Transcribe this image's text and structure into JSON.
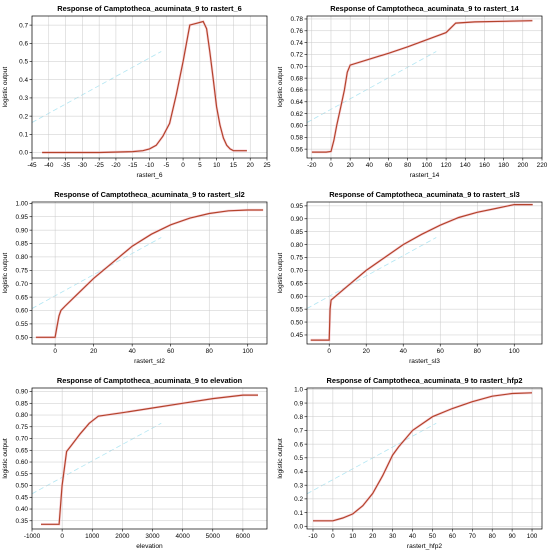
{
  "chart_data": [
    {
      "type": "line",
      "title": "Response of Camptotheca_acuminata_9 to rastert_6",
      "xlabel": "rastert_6",
      "ylabel": "logistic output",
      "xlim": [
        -45,
        25
      ],
      "ylim": [
        -0.03,
        0.75
      ],
      "xticks": [
        -45,
        -40,
        -35,
        -30,
        -25,
        -20,
        -15,
        -10,
        -5,
        0,
        5,
        10,
        15,
        20,
        25
      ],
      "yticks": [
        0.0,
        0.1,
        0.2,
        0.3,
        0.4,
        0.5,
        0.6,
        0.7
      ],
      "xtick_labels": [
        "-45",
        "-40",
        "-35",
        "-30",
        "-25",
        "-20",
        "-15",
        "-10",
        "-5",
        "0",
        "5",
        "10",
        "15",
        "20",
        "25"
      ],
      "ytick_labels": [
        "0.0",
        "0.1",
        "0.2",
        "0.3",
        "0.4",
        "0.5",
        "0.6",
        "0.7"
      ],
      "grid": true,
      "series": [
        {
          "x": [
            -42,
            -25,
            -15,
            -12,
            -10,
            -8,
            -6,
            -4,
            -2,
            0,
            2,
            4,
            6,
            7,
            8,
            9,
            10,
            11,
            12,
            13,
            14,
            15,
            17,
            19
          ],
          "y": [
            0.0,
            0.0,
            0.005,
            0.01,
            0.02,
            0.04,
            0.09,
            0.16,
            0.32,
            0.5,
            0.7,
            0.71,
            0.72,
            0.68,
            0.55,
            0.4,
            0.25,
            0.15,
            0.08,
            0.04,
            0.02,
            0.01,
            0.01,
            0.01
          ]
        }
      ]
    },
    {
      "type": "line",
      "title": "Response of Camptotheca_acuminata_9 to rastert_14",
      "xlabel": "rastert_14",
      "ylabel": "logistic output",
      "xlim": [
        -25,
        220
      ],
      "ylim": [
        0.545,
        0.785
      ],
      "xticks": [
        -20,
        0,
        20,
        40,
        60,
        80,
        100,
        120,
        140,
        160,
        180,
        200,
        220
      ],
      "yticks": [
        0.56,
        0.58,
        0.6,
        0.62,
        0.64,
        0.66,
        0.68,
        0.7,
        0.72,
        0.74,
        0.76,
        0.78
      ],
      "xtick_labels": [
        "-20",
        "0",
        "20",
        "40",
        "60",
        "80",
        "100",
        "120",
        "140",
        "160",
        "180",
        "200",
        "220"
      ],
      "ytick_labels": [
        "0.56",
        "0.58",
        "0.60",
        "0.62",
        "0.64",
        "0.66",
        "0.68",
        "0.70",
        "0.72",
        "0.74",
        "0.76",
        "0.78"
      ],
      "grid": true,
      "series": [
        {
          "x": [
            -20,
            -5,
            0,
            3,
            6,
            10,
            14,
            17,
            20,
            40,
            60,
            80,
            100,
            120,
            130,
            150,
            180,
            210
          ],
          "y": [
            0.555,
            0.555,
            0.556,
            0.575,
            0.6,
            0.63,
            0.66,
            0.69,
            0.702,
            0.712,
            0.722,
            0.733,
            0.745,
            0.757,
            0.773,
            0.775,
            0.776,
            0.777
          ]
        }
      ]
    },
    {
      "type": "line",
      "title": "Response of Camptotheca_acuminata_9 to rastert_sl2",
      "xlabel": "rastert_sl2",
      "ylabel": "logistic output",
      "xlim": [
        -12,
        110
      ],
      "ylim": [
        0.475,
        1.005
      ],
      "xticks": [
        0,
        20,
        40,
        60,
        80,
        100
      ],
      "yticks": [
        0.5,
        0.55,
        0.6,
        0.65,
        0.7,
        0.75,
        0.8,
        0.85,
        0.9,
        0.95,
        1.0
      ],
      "xtick_labels": [
        "0",
        "20",
        "40",
        "60",
        "80",
        "100"
      ],
      "ytick_labels": [
        "0.50",
        "0.55",
        "0.60",
        "0.65",
        "0.70",
        "0.75",
        "0.80",
        "0.85",
        "0.90",
        "0.95",
        "1.00"
      ],
      "grid": true,
      "series": [
        {
          "x": [
            -10,
            0,
            1,
            2,
            3,
            5,
            10,
            20,
            30,
            40,
            50,
            60,
            70,
            80,
            90,
            100,
            108
          ],
          "y": [
            0.5,
            0.5,
            0.54,
            0.58,
            0.6,
            0.615,
            0.65,
            0.72,
            0.78,
            0.84,
            0.885,
            0.92,
            0.945,
            0.962,
            0.972,
            0.975,
            0.975
          ]
        }
      ]
    },
    {
      "type": "line",
      "title": "Response of Camptotheca_acuminata_9 to rastert_sl3",
      "xlabel": "rastert_sl3",
      "ylabel": "logistic output",
      "xlim": [
        -12,
        115
      ],
      "ylim": [
        0.415,
        0.965
      ],
      "xticks": [
        0,
        20,
        40,
        60,
        80,
        100
      ],
      "yticks": [
        0.45,
        0.5,
        0.55,
        0.6,
        0.65,
        0.7,
        0.75,
        0.8,
        0.85,
        0.9,
        0.95
      ],
      "xtick_labels": [
        "0",
        "20",
        "40",
        "60",
        "80",
        "100"
      ],
      "ytick_labels": [
        "0.45",
        "0.50",
        "0.55",
        "0.60",
        "0.65",
        "0.70",
        "0.75",
        "0.80",
        "0.85",
        "0.90",
        "0.95"
      ],
      "grid": true,
      "series": [
        {
          "x": [
            -10,
            0,
            0.5,
            1,
            10,
            20,
            30,
            40,
            50,
            60,
            70,
            80,
            90,
            100,
            110
          ],
          "y": [
            0.43,
            0.43,
            0.55,
            0.585,
            0.64,
            0.7,
            0.75,
            0.8,
            0.84,
            0.875,
            0.905,
            0.925,
            0.94,
            0.955,
            0.955
          ]
        }
      ]
    },
    {
      "type": "line",
      "title": "Response of Camptotheca_acuminata_9 to elevation",
      "xlabel": "elevation",
      "ylabel": "logistic output",
      "xlim": [
        -1000,
        6800
      ],
      "ylim": [
        0.315,
        0.915
      ],
      "xticks": [
        -1000,
        0,
        1000,
        2000,
        3000,
        4000,
        5000,
        6000
      ],
      "yticks": [
        0.35,
        0.4,
        0.45,
        0.5,
        0.55,
        0.6,
        0.65,
        0.7,
        0.75,
        0.8,
        0.85,
        0.9
      ],
      "xtick_labels": [
        "-1000",
        "0",
        "1000",
        "2000",
        "3000",
        "4000",
        "5000",
        "6000"
      ],
      "ytick_labels": [
        "0.35",
        "0.40",
        "0.45",
        "0.50",
        "0.55",
        "0.60",
        "0.65",
        "0.70",
        "0.75",
        "0.80",
        "0.85",
        "0.90"
      ],
      "grid": true,
      "series": [
        {
          "x": [
            -700,
            -100,
            0,
            150,
            300,
            600,
            900,
            1200,
            2000,
            3000,
            4000,
            5000,
            6000,
            6500
          ],
          "y": [
            0.335,
            0.335,
            0.5,
            0.645,
            0.67,
            0.72,
            0.765,
            0.795,
            0.81,
            0.83,
            0.85,
            0.87,
            0.885,
            0.885
          ]
        }
      ]
    },
    {
      "type": "line",
      "title": "Response of Camptotheca_acuminata_9 to rastert_hfp2",
      "xlabel": "rastert_hfp2",
      "ylabel": "logistic output",
      "xlim": [
        -13,
        105
      ],
      "ylim": [
        -0.02,
        1.01
      ],
      "xticks": [
        -10,
        0,
        10,
        20,
        30,
        40,
        50,
        60,
        70,
        80,
        90,
        100
      ],
      "yticks": [
        0.0,
        0.1,
        0.2,
        0.3,
        0.4,
        0.5,
        0.6,
        0.7,
        0.8,
        0.9,
        1.0
      ],
      "xtick_labels": [
        "-10",
        "0",
        "10",
        "20",
        "30",
        "40",
        "50",
        "60",
        "70",
        "80",
        "90",
        "100"
      ],
      "ytick_labels": [
        "0.0",
        "0.1",
        "0.2",
        "0.3",
        "0.4",
        "0.5",
        "0.6",
        "0.7",
        "0.8",
        "0.9",
        "1.0"
      ],
      "grid": true,
      "series": [
        {
          "x": [
            -10,
            0,
            5,
            10,
            15,
            20,
            25,
            30,
            33,
            40,
            50,
            60,
            70,
            80,
            90,
            100
          ],
          "y": [
            0.04,
            0.04,
            0.06,
            0.09,
            0.15,
            0.24,
            0.37,
            0.52,
            0.58,
            0.7,
            0.8,
            0.86,
            0.91,
            0.95,
            0.97,
            0.975
          ]
        }
      ]
    }
  ]
}
